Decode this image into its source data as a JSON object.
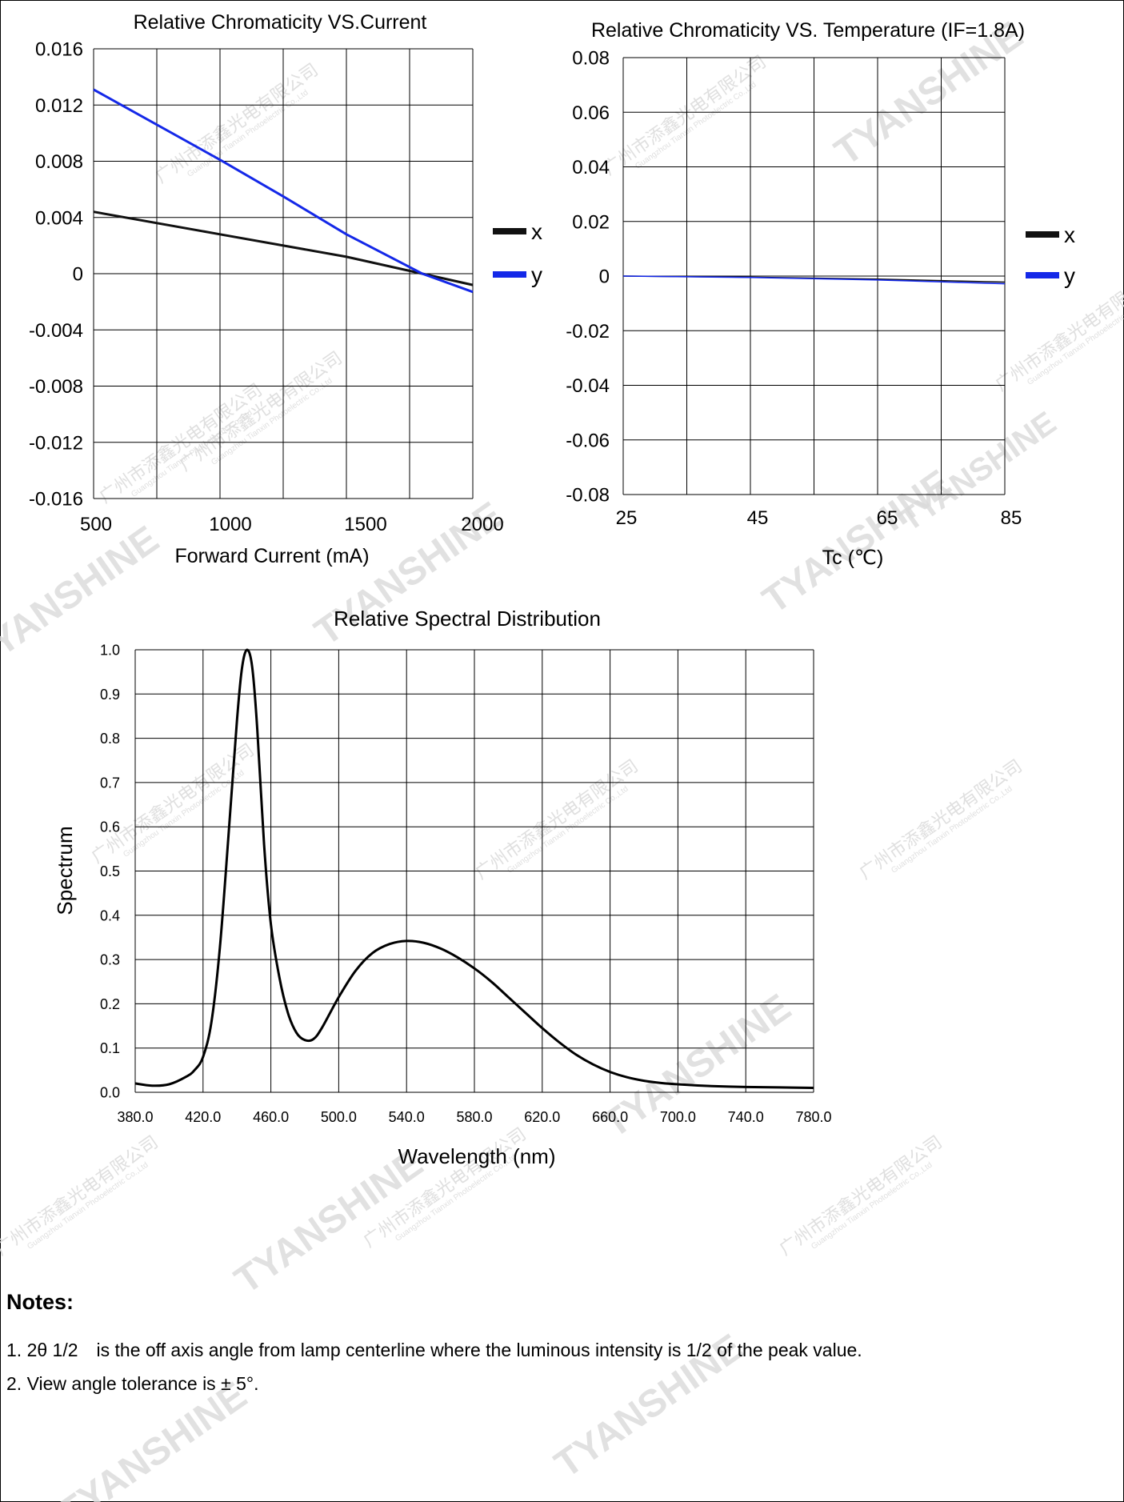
{
  "chart_data": [
    {
      "type": "line",
      "title": "Relative Chromaticity VS.Current",
      "xlabel": "Forward Current (mA)",
      "ylabel": "",
      "xlim": [
        500,
        2000
      ],
      "ylim": [
        -0.016,
        0.016
      ],
      "x_ticks": [
        "500",
        "1000",
        "1500",
        "2000"
      ],
      "y_ticks": [
        "0.016",
        "0.012",
        "0.008",
        "0.004",
        "0",
        "-0.004",
        "-0.008",
        "-0.012",
        "-0.016"
      ],
      "grid": true,
      "legend": "right",
      "series": [
        {
          "name": "x",
          "color": "#111111",
          "points": [
            [
              500,
              0.0044
            ],
            [
              1000,
              0.0028
            ],
            [
              1500,
              0.0012
            ],
            [
              1800,
              0.0
            ],
            [
              2000,
              -0.0008
            ]
          ]
        },
        {
          "name": "y",
          "color": "#1428e8",
          "points": [
            [
              500,
              0.0131
            ],
            [
              1000,
              0.0081
            ],
            [
              1250,
              0.0055
            ],
            [
              1500,
              0.0028
            ],
            [
              1800,
              0.0
            ],
            [
              2000,
              -0.0013
            ]
          ]
        }
      ]
    },
    {
      "type": "line",
      "title": "Relative Chromaticity VS. Temperature (IF=1.8A)",
      "xlabel": "Tc (℃)",
      "ylabel": "",
      "xlim": [
        25,
        85
      ],
      "ylim": [
        -0.08,
        0.08
      ],
      "x_ticks": [
        "25",
        "45",
        "65",
        "85"
      ],
      "y_ticks": [
        "0.08",
        "0.06",
        "0.04",
        "0.02",
        "0",
        "-0.02",
        "-0.04",
        "-0.06",
        "-0.08"
      ],
      "grid": true,
      "legend": "right",
      "series": [
        {
          "name": "x",
          "color": "#111111",
          "points": [
            [
              25,
              0.0
            ],
            [
              45,
              -0.0004
            ],
            [
              65,
              -0.0011
            ],
            [
              85,
              -0.0022
            ]
          ]
        },
        {
          "name": "y",
          "color": "#1428e8",
          "points": [
            [
              25,
              0.0
            ],
            [
              45,
              -0.0005
            ],
            [
              65,
              -0.0014
            ],
            [
              85,
              -0.0028
            ]
          ]
        }
      ]
    },
    {
      "type": "line",
      "title": "Relative Spectral Distribution",
      "xlabel": "Wavelength (nm)",
      "ylabel": "Spectrum",
      "xlim": [
        380,
        780
      ],
      "ylim": [
        0,
        1.0
      ],
      "x_ticks": [
        "380.0",
        "420.0",
        "460.0",
        "500.0",
        "540.0",
        "580.0",
        "620.0",
        "660.0",
        "700.0",
        "740.0",
        "780.0"
      ],
      "y_ticks": [
        "1.0",
        "0.9",
        "0.8",
        "0.7",
        "0.6",
        "0.5",
        "0.4",
        "0.3",
        "0.2",
        "0.1",
        "0.0"
      ],
      "grid": true,
      "series": [
        {
          "name": "",
          "color": "#000000",
          "points": [
            [
              380,
              0.02
            ],
            [
              390,
              0.015
            ],
            [
              400,
              0.018
            ],
            [
              410,
              0.035
            ],
            [
              415,
              0.05
            ],
            [
              420,
              0.08
            ],
            [
              425,
              0.16
            ],
            [
              430,
              0.33
            ],
            [
              435,
              0.58
            ],
            [
              440,
              0.84
            ],
            [
              443,
              0.96
            ],
            [
              446,
              1.0
            ],
            [
              449,
              0.96
            ],
            [
              452,
              0.82
            ],
            [
              456,
              0.56
            ],
            [
              460,
              0.38
            ],
            [
              465,
              0.26
            ],
            [
              470,
              0.18
            ],
            [
              475,
              0.135
            ],
            [
              480,
              0.118
            ],
            [
              485,
              0.12
            ],
            [
              490,
              0.145
            ],
            [
              500,
              0.215
            ],
            [
              510,
              0.275
            ],
            [
              520,
              0.315
            ],
            [
              530,
              0.335
            ],
            [
              540,
              0.342
            ],
            [
              550,
              0.338
            ],
            [
              560,
              0.325
            ],
            [
              570,
              0.305
            ],
            [
              580,
              0.28
            ],
            [
              590,
              0.25
            ],
            [
              600,
              0.215
            ],
            [
              610,
              0.18
            ],
            [
              620,
              0.145
            ],
            [
              630,
              0.113
            ],
            [
              640,
              0.085
            ],
            [
              650,
              0.063
            ],
            [
              660,
              0.046
            ],
            [
              670,
              0.034
            ],
            [
              680,
              0.026
            ],
            [
              690,
              0.021
            ],
            [
              700,
              0.018
            ],
            [
              720,
              0.014
            ],
            [
              740,
              0.012
            ],
            [
              760,
              0.011
            ],
            [
              780,
              0.01
            ]
          ]
        }
      ]
    }
  ],
  "notes": {
    "title": "Notes:",
    "items": [
      "1. 2θ 1/2　is the off axis angle from lamp centerline where the luminous intensity is 1/2 of the peak value.",
      "2. View angle tolerance is ± 5°."
    ]
  },
  "watermark": {
    "text": "TYANSHINE",
    "company_cn": "广州市添鑫光电有限公司",
    "company_en": "Guangzhou Tianxin Photoelectric Co.,Ltd",
    "color": "#dadada"
  }
}
